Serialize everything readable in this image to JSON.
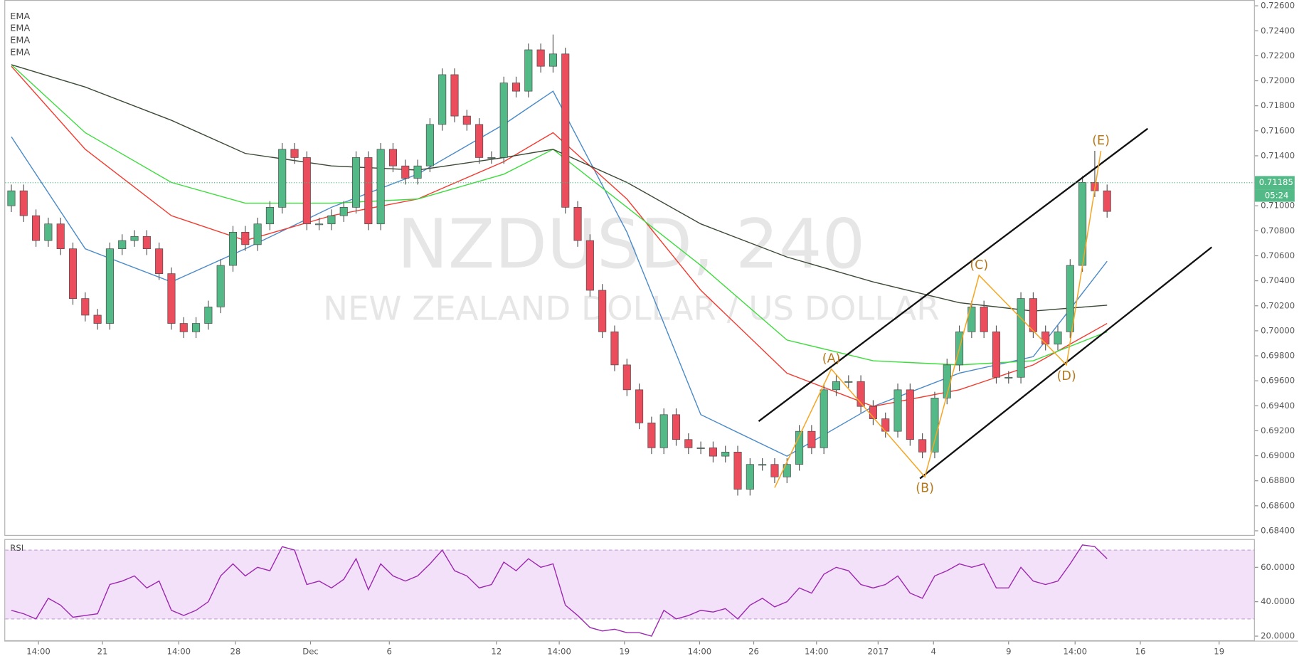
{
  "chart_data": [
    {
      "type": "candlestick",
      "title": "NZDUSD, 240",
      "subtitle": "NEW ZEALAND DOLLAR / US DOLLAR",
      "up_color": "#53b987",
      "down_color": "#eb4d5c",
      "x": [
        0,
        1,
        2,
        3,
        4,
        5,
        6,
        7,
        8,
        9,
        10,
        11,
        12,
        13,
        14,
        15,
        16,
        17,
        18,
        19,
        20,
        21,
        22,
        23,
        24,
        25,
        26,
        27,
        28,
        29,
        30,
        31,
        32,
        33,
        34,
        35,
        36,
        37,
        38,
        39,
        40,
        41,
        42,
        43,
        44,
        45,
        46,
        47,
        48,
        49,
        50,
        51,
        52,
        53,
        54,
        55,
        56,
        57,
        58,
        59,
        60,
        61,
        62,
        63,
        64,
        65,
        66,
        67,
        68,
        69,
        70,
        71,
        72,
        73,
        74,
        75,
        76,
        77,
        78,
        79,
        80,
        81,
        82,
        83,
        84,
        85,
        86,
        87,
        88,
        89
      ],
      "open": [
        0.71,
        0.7112,
        0.70921,
        0.70722,
        0.70855,
        0.70656,
        0.70258,
        0.70125,
        0.70059,
        0.70656,
        0.70722,
        0.70755,
        0.70656,
        0.70457,
        0.70059,
        0.69992,
        0.70059,
        0.70191,
        0.70523,
        0.70789,
        0.70689,
        0.70855,
        0.70988,
        0.71452,
        0.71386,
        0.70855,
        0.70855,
        0.70921,
        0.70988,
        0.71386,
        0.70855,
        0.71452,
        0.71319,
        0.7122,
        0.71319,
        0.71651,
        0.72049,
        0.71718,
        0.71651,
        0.71386,
        0.71386,
        0.71983,
        0.71917,
        0.72248,
        0.72116,
        0.72215,
        0.70988,
        0.70722,
        0.70324,
        0.69992,
        0.69727,
        0.69528,
        0.69263,
        0.69064,
        0.69329,
        0.6913,
        0.69064,
        0.69064,
        0.68997,
        0.6903,
        0.68732,
        0.68931,
        0.68931,
        0.68831,
        0.68931,
        0.69196,
        0.69064,
        0.69528,
        0.69594,
        0.69594,
        0.69395,
        0.69296,
        0.69196,
        0.69528,
        0.6913,
        0.6903,
        0.69462,
        0.69727,
        0.69992,
        0.70191,
        0.69992,
        0.69628,
        0.69628,
        0.70258,
        0.69992,
        0.69893,
        0.69992,
        0.70523,
        0.71187,
        0.7112
      ],
      "high": [
        0.7117,
        0.7117,
        0.70971,
        0.70905,
        0.70905,
        0.70706,
        0.70308,
        0.70175,
        0.70706,
        0.70772,
        0.70805,
        0.70805,
        0.70706,
        0.70507,
        0.70109,
        0.70109,
        0.70241,
        0.70573,
        0.70839,
        0.70839,
        0.70905,
        0.71038,
        0.71502,
        0.71502,
        0.71436,
        0.70905,
        0.70971,
        0.71038,
        0.71436,
        0.71436,
        0.71502,
        0.71502,
        0.71369,
        0.71369,
        0.71701,
        0.72099,
        0.72099,
        0.71768,
        0.71701,
        0.71436,
        0.72033,
        0.72033,
        0.72298,
        0.72298,
        0.7237,
        0.72265,
        0.71038,
        0.70772,
        0.70374,
        0.70042,
        0.69777,
        0.69578,
        0.69313,
        0.69379,
        0.69379,
        0.6918,
        0.69114,
        0.69114,
        0.6908,
        0.6908,
        0.68981,
        0.68981,
        0.68981,
        0.68981,
        0.69246,
        0.69246,
        0.69578,
        0.69644,
        0.69644,
        0.69644,
        0.69445,
        0.69346,
        0.69578,
        0.69578,
        0.6918,
        0.69512,
        0.69777,
        0.70042,
        0.70241,
        0.70241,
        0.70042,
        0.69678,
        0.70308,
        0.70308,
        0.70042,
        0.70042,
        0.70573,
        0.71237,
        0.7144,
        0.7117
      ],
      "low": [
        0.7095,
        0.70871,
        0.70672,
        0.70672,
        0.70606,
        0.70208,
        0.70075,
        0.70009,
        0.70009,
        0.70606,
        0.70672,
        0.70606,
        0.70407,
        0.70009,
        0.69942,
        0.69942,
        0.70009,
        0.70141,
        0.70473,
        0.70639,
        0.70639,
        0.70805,
        0.70938,
        0.71336,
        0.70805,
        0.70805,
        0.70805,
        0.70871,
        0.70938,
        0.70805,
        0.70805,
        0.71269,
        0.7117,
        0.7117,
        0.71269,
        0.71601,
        0.71668,
        0.71601,
        0.71336,
        0.71336,
        0.71336,
        0.71867,
        0.71867,
        0.72066,
        0.72066,
        0.70938,
        0.70672,
        0.70274,
        0.69942,
        0.69677,
        0.69478,
        0.69213,
        0.69014,
        0.69014,
        0.6908,
        0.69014,
        0.69014,
        0.68947,
        0.68947,
        0.68682,
        0.68682,
        0.68881,
        0.68781,
        0.68781,
        0.68881,
        0.69014,
        0.69014,
        0.69478,
        0.69544,
        0.69345,
        0.69246,
        0.69146,
        0.69146,
        0.6908,
        0.6898,
        0.6898,
        0.69412,
        0.69677,
        0.69942,
        0.69942,
        0.69578,
        0.69578,
        0.69578,
        0.69942,
        0.69843,
        0.69843,
        0.69942,
        0.70473,
        0.7107,
        0.70905
      ],
      "close": [
        0.7112,
        0.70921,
        0.70722,
        0.70855,
        0.70656,
        0.70258,
        0.70125,
        0.70059,
        0.70656,
        0.70722,
        0.70755,
        0.70656,
        0.70457,
        0.70059,
        0.69992,
        0.70059,
        0.70191,
        0.70523,
        0.70789,
        0.70689,
        0.70855,
        0.70988,
        0.71452,
        0.71386,
        0.70855,
        0.70855,
        0.70921,
        0.70988,
        0.71386,
        0.70855,
        0.71452,
        0.71319,
        0.7122,
        0.71319,
        0.71651,
        0.72049,
        0.71718,
        0.71651,
        0.71386,
        0.71386,
        0.71983,
        0.71917,
        0.72248,
        0.72116,
        0.72215,
        0.70988,
        0.70722,
        0.70324,
        0.69992,
        0.69727,
        0.69528,
        0.69263,
        0.69064,
        0.69329,
        0.6913,
        0.69064,
        0.69064,
        0.68997,
        0.6903,
        0.68732,
        0.68931,
        0.68931,
        0.68831,
        0.68931,
        0.69196,
        0.69064,
        0.69528,
        0.69594,
        0.69594,
        0.69395,
        0.69296,
        0.69196,
        0.69528,
        0.6913,
        0.6903,
        0.69462,
        0.69727,
        0.69992,
        0.70191,
        0.69992,
        0.69628,
        0.69628,
        0.70258,
        0.69992,
        0.69893,
        0.69992,
        0.70523,
        0.71187,
        0.7112,
        0.70955
      ],
      "series": [
        {
          "name": "EMA",
          "color": "#4a8ac9",
          "x": [
            0,
            6,
            13,
            19,
            26,
            33,
            40,
            44,
            50,
            56,
            63,
            70,
            77,
            83,
            89
          ],
          "values": [
            0.71552,
            0.70656,
            0.70391,
            0.70656,
            0.70988,
            0.71253,
            0.71651,
            0.71917,
            0.70789,
            0.69329,
            0.68997,
            0.69395,
            0.69661,
            0.69793,
            0.70556
          ]
        },
        {
          "name": "EMA",
          "color": "#f23a2f",
          "x": [
            0,
            6,
            13,
            19,
            26,
            33,
            40,
            44,
            50,
            56,
            63,
            70,
            77,
            83,
            89
          ],
          "values": [
            0.72116,
            0.71452,
            0.70921,
            0.70722,
            0.70921,
            0.71054,
            0.71353,
            0.71585,
            0.71054,
            0.70324,
            0.69661,
            0.69395,
            0.69528,
            0.69727,
            0.70059
          ]
        },
        {
          "name": "EMA",
          "color": "#3ddc3d",
          "x": [
            0,
            6,
            13,
            19,
            26,
            33,
            40,
            44,
            50,
            56,
            63,
            70,
            77,
            83,
            89
          ],
          "values": [
            0.72129,
            0.71585,
            0.71187,
            0.71021,
            0.71021,
            0.71054,
            0.71253,
            0.71452,
            0.70988,
            0.70523,
            0.69926,
            0.6976,
            0.69727,
            0.6976,
            0.69992
          ]
        },
        {
          "name": "EMA",
          "color": "#3b4a35",
          "x": [
            0,
            6,
            13,
            19,
            26,
            33,
            40,
            44,
            50,
            56,
            63,
            70,
            77,
            83,
            89
          ],
          "values": [
            0.72129,
            0.7195,
            0.71684,
            0.71419,
            0.71319,
            0.71286,
            0.71386,
            0.71452,
            0.71187,
            0.70855,
            0.7059,
            0.70391,
            0.70225,
            0.70158,
            0.70205
          ]
        }
      ],
      "xlim": [
        -0.5,
        101
      ],
      "xticks": [
        {
          "value": 2.2,
          "label": "14:00"
        },
        {
          "value": 7.4,
          "label": "21"
        },
        {
          "value": 13.6,
          "label": "14:00"
        },
        {
          "value": 18.2,
          "label": "28"
        },
        {
          "value": 24.3,
          "label": "Dec"
        },
        {
          "value": 30.7,
          "label": "6"
        },
        {
          "value": 39.4,
          "label": "12"
        },
        {
          "value": 44.5,
          "label": "14:00"
        },
        {
          "value": 49.8,
          "label": "19"
        },
        {
          "value": 55.9,
          "label": "14:00"
        },
        {
          "value": 60.3,
          "label": "26"
        },
        {
          "value": 65.4,
          "label": "14:00"
        },
        {
          "value": 70.4,
          "label": "2017"
        },
        {
          "value": 74.9,
          "label": "4"
        },
        {
          "value": 81.0,
          "label": "9"
        },
        {
          "value": 86.4,
          "label": "14:00"
        },
        {
          "value": 91.7,
          "label": "16"
        },
        {
          "value": 98.1,
          "label": "19"
        }
      ],
      "ylim": [
        0.684,
        0.726
      ],
      "yticks": [
        {
          "value": 0.684,
          "label": "0.68400"
        },
        {
          "value": 0.686,
          "label": "0.68600"
        },
        {
          "value": 0.688,
          "label": "0.68800"
        },
        {
          "value": 0.69,
          "label": "0.69000"
        },
        {
          "value": 0.692,
          "label": "0.69200"
        },
        {
          "value": 0.694,
          "label": "0.69400"
        },
        {
          "value": 0.696,
          "label": "0.69600"
        },
        {
          "value": 0.698,
          "label": "0.69800"
        },
        {
          "value": 0.7,
          "label": "0.70000"
        },
        {
          "value": 0.702,
          "label": "0.70200"
        },
        {
          "value": 0.704,
          "label": "0.70400"
        },
        {
          "value": 0.706,
          "label": "0.70600"
        },
        {
          "value": 0.708,
          "label": "0.70800"
        },
        {
          "value": 0.71,
          "label": "0.71000"
        },
        {
          "value": 0.712,
          "label": "0.71200"
        },
        {
          "value": 0.714,
          "label": "0.71400"
        },
        {
          "value": 0.716,
          "label": "0.71600"
        },
        {
          "value": 0.718,
          "label": "0.71800"
        },
        {
          "value": 0.72,
          "label": "0.72000"
        },
        {
          "value": 0.722,
          "label": "0.72200"
        },
        {
          "value": 0.724,
          "label": "0.72400"
        },
        {
          "value": 0.726,
          "label": "0.72600"
        }
      ],
      "last_price": 0.71185,
      "countdown": "05:24",
      "trend_lines": [
        {
          "x": [
            60.7,
            92.3
          ],
          "y": [
            0.69276,
            0.71618
          ]
        },
        {
          "x": [
            73.8,
            97.5
          ],
          "y": [
            0.68818,
            0.70669
          ]
        }
      ],
      "pattern": {
        "color": "#f5a623",
        "label_color": "#b5791c",
        "x": [
          62.0,
          66.6,
          74.2,
          78.6,
          85.7,
          88.5
        ],
        "y": [
          0.68745,
          0.69694,
          0.68831,
          0.70444,
          0.69727,
          0.71439
        ],
        "labels": [
          null,
          "(A)",
          "(B)",
          "(C)",
          "(D)",
          "(E)"
        ]
      }
    },
    {
      "type": "line",
      "series": [
        {
          "name": "RSI",
          "color": "#9c27b0",
          "values": [
            35,
            33,
            30,
            42,
            38,
            31,
            32,
            33,
            50,
            52,
            55,
            48,
            52,
            35,
            32,
            35,
            40,
            55,
            62,
            55,
            60,
            58,
            72,
            70,
            50,
            52,
            48,
            53,
            65,
            47,
            62,
            55,
            52,
            55,
            62,
            70,
            58,
            55,
            48,
            50,
            63,
            58,
            65,
            60,
            62,
            38,
            32,
            25,
            23,
            24,
            22,
            22,
            20,
            35,
            30,
            32,
            35,
            34,
            36,
            30,
            38,
            42,
            37,
            40,
            48,
            45,
            56,
            60,
            58,
            50,
            48,
            50,
            55,
            45,
            42,
            55,
            58,
            62,
            60,
            62,
            48,
            48,
            60,
            52,
            50,
            52,
            62,
            73,
            72,
            65
          ]
        }
      ],
      "band": [
        30,
        70
      ],
      "band_color": "#f3e1fa",
      "ylim": [
        17.6,
        76.4
      ],
      "yticks": [
        {
          "value": 20,
          "label": "20.0000"
        },
        {
          "value": 40,
          "label": "40.0000"
        },
        {
          "value": 60,
          "label": "60.0000"
        }
      ]
    }
  ]
}
